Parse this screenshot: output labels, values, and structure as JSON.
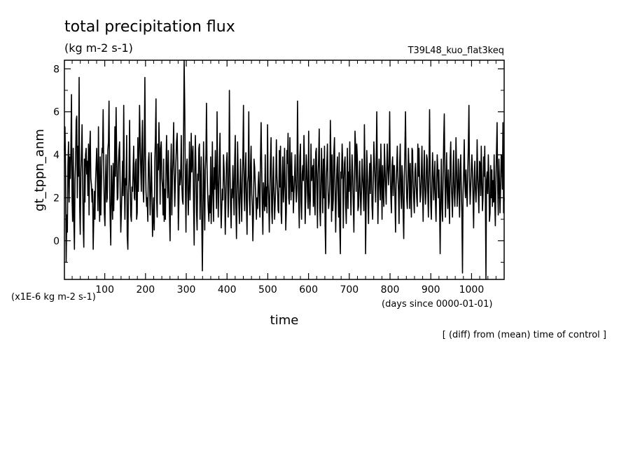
{
  "chart_data": {
    "type": "line",
    "title": "total precipitation flux",
    "units": "(kg m-2 s-1)",
    "run_label": "T39L48_kuo_flat3keq",
    "scale_label": "(x1E-6 kg m-2 s-1)",
    "xlabel": "time",
    "x_units": "(days since 0000-01-01)",
    "ylabel": "gt_tppn_anm",
    "footnote": "[ (diff) from (mean) time of control ]",
    "xlim": [
      1,
      1080
    ],
    "ylim": [
      -1.8,
      8.4
    ],
    "x_ticks": [
      100,
      200,
      300,
      400,
      500,
      600,
      700,
      800,
      900,
      1000
    ],
    "y_ticks": [
      0,
      2,
      4,
      6,
      8
    ],
    "grid": false,
    "series": [
      {
        "values": [
          4.2,
          5.3,
          3.1,
          -1.0,
          1.2,
          0.4,
          3.5,
          4.6,
          1.8,
          3.9,
          2.9,
          4.2,
          6.8,
          2.0,
          0.9,
          4.3,
          1.1,
          -0.4,
          2.8,
          3.6,
          5.6,
          5.8,
          2.0,
          4.4,
          3.0,
          7.6,
          1.6,
          0.3,
          3.2,
          4.0,
          5.4,
          2.7,
          0.8,
          -0.3,
          3.8,
          1.8,
          4.0,
          4.3,
          3.1,
          3.7,
          2.1,
          4.5,
          1.2,
          4.3,
          5.1,
          2.9,
          2.6,
          1.8,
          2.4,
          -0.4,
          1.1,
          2.3,
          1.0,
          2.7,
          3.5,
          4.3,
          2.9,
          1.4,
          5.3,
          2.2,
          0.9,
          3.9,
          1.2,
          2.6,
          4.3,
          4.1,
          6.1,
          3.2,
          1.3,
          0.7,
          2.9,
          4.0,
          1.8,
          2.0,
          4.2,
          4.6,
          6.5,
          2.4,
          0.9,
          -0.2,
          3.5,
          2.2,
          1.0,
          3.6,
          1.4,
          2.8,
          5.3,
          3.0,
          6.2,
          4.1,
          1.9,
          2.0,
          3.5,
          4.2,
          4.6,
          2.2,
          0.4,
          1.3,
          2.4,
          3.7,
          2.1,
          6.3,
          2.8,
          1.0,
          2.9,
          2.6,
          4.9,
          0.2,
          -0.4,
          2.2,
          2.9,
          5.6,
          2.7,
          1.2,
          0.9,
          2.5,
          2.3,
          3.3,
          4.4,
          2.0,
          1.9,
          3.6,
          3.8,
          1.0,
          1.3,
          4.8,
          2.3,
          3.9,
          6.3,
          4.6,
          3.3,
          2.3,
          4.5,
          5.6,
          2.3,
          1.8,
          4.0,
          7.6,
          4.0,
          2.3,
          1.6,
          2.0,
          0.9,
          3.6,
          4.1,
          2.8,
          1.2,
          2.3,
          4.1,
          2.4,
          0.2,
          1.0,
          2.0,
          0.5,
          3.7,
          4.9,
          6.6,
          2.0,
          1.1,
          4.5,
          3.3,
          5.5,
          4.1,
          1.7,
          4.3,
          4.6,
          2.9,
          2.5,
          1.2,
          3.8,
          0.9,
          2.4,
          1.0,
          3.6,
          4.9,
          3.1,
          2.0,
          4.2,
          2.6,
          1.2,
          0.0,
          3.3,
          4.5,
          1.2,
          3.0,
          3.8,
          5.5,
          3.0,
          1.6,
          2.8,
          3.7,
          4.6,
          5.0,
          3.6,
          0.5,
          1.8,
          3.3,
          2.6,
          3.0,
          4.9,
          2.6,
          1.9,
          1.7,
          5.1,
          8.4,
          6.0,
          2.7,
          0.4,
          3.5,
          3.8,
          2.4,
          1.2,
          2.7,
          4.6,
          1.9,
          3.2,
          5.0,
          3.2,
          3.9,
          4.4,
          1.6,
          -0.2,
          3.1,
          4.9,
          3.4,
          1.3,
          0.5,
          3.1,
          2.8,
          4.3,
          4.5,
          1.0,
          2.6,
          3.9,
          0.8,
          -1.4,
          1.3,
          4.6,
          2.2,
          0.5,
          3.3,
          4.0,
          6.4,
          3.4,
          2.2,
          1.5,
          0.9,
          2.1,
          1.3,
          3.9,
          0.8,
          2.3,
          4.6,
          2.2,
          0.9,
          3.4,
          2.4,
          4.2,
          2.8,
          1.5,
          6.0,
          3.1,
          1.1,
          2.4,
          3.8,
          5.0,
          2.0,
          0.6,
          1.5,
          2.4,
          1.9,
          4.0,
          3.3,
          2.3,
          0.3,
          1.9,
          3.6,
          4.1,
          2.9,
          1.1,
          2.6,
          7.0,
          3.6,
          1.6,
          0.6,
          2.4,
          2.0,
          3.5,
          2.3,
          1.2,
          3.7,
          4.9,
          1.7,
          0.1,
          2.1,
          4.6,
          3.0,
          1.8,
          0.8,
          2.3,
          3.8,
          2.0,
          0.9,
          2.8,
          4.0,
          6.3,
          2.3,
          1.4,
          3.1,
          4.1,
          1.8,
          0.3,
          2.7,
          3.0,
          6.0,
          2.0,
          1.2,
          3.5,
          4.4,
          2.2,
          1.6,
          0.0,
          1.3,
          3.8,
          3.4,
          2.7,
          2.0,
          1.0,
          2.0,
          1.5,
          2.6,
          3.2,
          1.8,
          1.1,
          3.8,
          5.5,
          3.5,
          1.5,
          0.3,
          2.7,
          2.1,
          1.4,
          4.0,
          1.6,
          2.5,
          1.3,
          5.4,
          2.7,
          1.9,
          0.4,
          2.5,
          3.8,
          4.8,
          1.4,
          0.8,
          2.8,
          3.9,
          2.2,
          1.0,
          1.8,
          2.7,
          4.7,
          3.0,
          2.3,
          1.4,
          1.3,
          4.2,
          2.5,
          4.4,
          1.3,
          0.8,
          3.0,
          3.9,
          1.8,
          2.5,
          4.3,
          2.6,
          0.5,
          1.4,
          4.2,
          3.6,
          5.0,
          2.0,
          1.7,
          4.8,
          3.1,
          1.9,
          4.1,
          2.3,
          3.0,
          1.3,
          2.2,
          3.0,
          4.0,
          2.6,
          1.8,
          2.4,
          6.5,
          3.5,
          2.0,
          0.6,
          3.9,
          4.5,
          1.8,
          1.0,
          3.1,
          3.5,
          2.8,
          4.9,
          3.5,
          0.8,
          1.9,
          4.0,
          3.3,
          2.2,
          1.5,
          5.1,
          2.3,
          1.2,
          2.0,
          4.5,
          2.8,
          3.2,
          3.5,
          1.6,
          3.8,
          1.8,
          1.2,
          4.1,
          4.3,
          2.6,
          0.6,
          3.1,
          3.8,
          5.2,
          1.5,
          0.7,
          2.7,
          4.3,
          2.8,
          1.3,
          3.8,
          2.0,
          4.4,
          0.7,
          -0.6,
          2.9,
          3.6,
          4.5,
          2.3,
          1.5,
          1.8,
          2.8,
          5.6,
          3.5,
          0.9,
          4.0,
          1.4,
          1.9,
          4.1,
          4.8,
          2.4,
          0.4,
          2.0,
          3.3,
          3.9,
          2.3,
          1.1,
          4.1,
          0.7,
          -0.6,
          3.2,
          2.9,
          4.5,
          3.7,
          0.6,
          2.8,
          3.6,
          3.9,
          1.7,
          0.8,
          2.5,
          4.3,
          1.5,
          3.2,
          2.3,
          4.6,
          2.7,
          1.2,
          2.8,
          4.0,
          3.0,
          1.8,
          0.4,
          2.8,
          5.1,
          4.3,
          2.3,
          4.5,
          3.8,
          1.4,
          1.6,
          2.8,
          3.7,
          2.1,
          1.2,
          2.4,
          3.8,
          3.0,
          2.3,
          1.4,
          5.4,
          3.1,
          -0.6,
          1.9,
          4.2,
          3.3,
          1.8,
          0.8,
          2.8,
          3.6,
          2.2,
          4.0,
          3.2,
          1.6,
          1.0,
          2.5,
          4.6,
          3.7,
          2.9,
          1.8,
          3.5,
          6.0,
          3.3,
          0.8,
          2.4,
          3.8,
          2.9,
          1.9,
          4.5,
          2.8,
          1.0,
          3.5,
          2.2,
          1.6,
          4.5,
          3.5,
          2.5,
          1.7,
          3.3,
          4.5,
          3.3,
          2.6,
          3.6,
          6.0,
          3.3,
          2.0,
          1.3,
          3.5,
          3.9,
          2.1,
          3.5,
          3.5,
          2.0,
          0.4,
          2.6,
          3.5,
          4.4,
          3.0,
          2.3,
          0.8,
          3.6,
          4.5,
          2.2,
          1.5,
          3.5,
          3.0,
          1.2,
          0.1,
          3.0,
          4.3,
          6.0,
          3.3,
          2.0,
          1.5,
          2.8,
          4.3,
          3.2,
          1.5,
          3.6,
          2.2,
          1.1,
          4.3,
          4.2,
          2.7,
          1.9,
          1.3,
          3.2,
          3.6,
          2.6,
          2.0,
          1.6,
          4.5,
          3.0,
          4.3,
          2.8,
          1.8,
          2.2,
          3.2,
          4.4,
          2.2,
          0.9,
          3.0,
          4.2,
          2.5,
          1.7,
          2.3,
          4.0,
          3.8,
          2.1,
          1.1,
          3.4,
          6.1,
          3.1,
          1.7,
          1.0,
          2.6,
          4.1,
          3.3,
          1.9,
          2.6,
          3.7,
          1.8,
          0.9,
          2.7,
          4.0,
          3.3,
          2.0,
          3.3,
          1.5,
          -0.6,
          2.1,
          3.8,
          1.5,
          0.9,
          2.8,
          4.6,
          5.9,
          3.2,
          1.1,
          2.6,
          4.1,
          2.3,
          1.5,
          3.3,
          2.0,
          0.8,
          3.8,
          4.6,
          2.7,
          1.9,
          1.1,
          3.4,
          4.2,
          2.2,
          1.6,
          2.8,
          4.8,
          3.2,
          1.6,
          2.5,
          3.8,
          2.4,
          1.1,
          3.3,
          4.0,
          2.4,
          1.3,
          -1.5,
          2.2,
          3.1,
          4.7,
          2.8,
          2.0,
          3.3,
          2.4,
          1.6,
          3.1,
          4.5,
          6.3,
          3.0,
          1.7,
          2.4,
          3.2,
          4.0,
          3.3,
          1.9,
          0.6,
          2.8,
          3.7,
          2.4,
          1.8,
          2.6,
          4.7,
          3.0,
          2.2,
          1.3,
          3.7,
          3.6,
          2.1,
          4.4,
          3.0,
          1.4,
          2.0,
          3.9,
          3.0,
          4.4,
          2.0,
          -1.8,
          2.8,
          3.2,
          2.2,
          4.0,
          2.9,
          0.9,
          1.3,
          3.5,
          2.0,
          3.3,
          1.6,
          2.8,
          1.8,
          4.0,
          1.8,
          0.7,
          2.9,
          4.2,
          5.5,
          2.4,
          1.2,
          3.8,
          2.7,
          1.3,
          2.6,
          4.0,
          3.9,
          2.4,
          5.5,
          1.3,
          2.0
        ]
      }
    ]
  }
}
